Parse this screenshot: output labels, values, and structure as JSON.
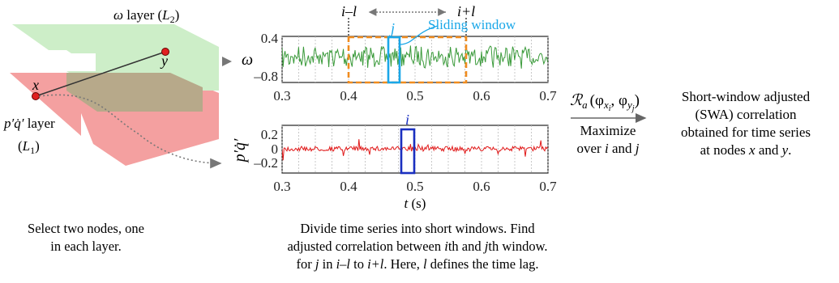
{
  "layers": {
    "top_label_main": "ω layer (",
    "top_label_sub": "L",
    "top_label_idx": "2",
    "top_label_close": ")",
    "bottom_label_line1": "p′q̇′ layer",
    "bottom_label_line2_main": "(L",
    "bottom_label_line2_idx": "1",
    "bottom_label_line2_close": ")",
    "colors": {
      "top": "#cdeec8",
      "bottom": "#f4a0a0",
      "overlap": "#b7a98a"
    }
  },
  "nodes": {
    "x_label": "x",
    "y_label": "y",
    "color": "#e02020"
  },
  "window_markers": {
    "left": "i–l",
    "right": "i+l"
  },
  "sliding_window_label": "Sliding window",
  "top_series": {
    "ylabel": "ω",
    "yticks": [
      "0.4",
      "–0.8"
    ],
    "xticks": [
      "0.3",
      "0.4",
      "0.5",
      "0.6",
      "0.7"
    ],
    "line_color": "#3a9a3a",
    "window_label": "j",
    "window_color": "#1aa7e8",
    "lag_box_color": "#f08c1e"
  },
  "bottom_series": {
    "ylabel": "p′q̇′",
    "yticks": [
      "0.2",
      "0",
      "–0.2"
    ],
    "xticks": [
      "0.3",
      "0.4",
      "0.5",
      "0.6",
      "0.7"
    ],
    "xlabel_var": "t",
    "xlabel_unit": " (s)",
    "line_color": "#e01818",
    "window_label": "i",
    "window_color": "#1a2fc0"
  },
  "arrow_labels": {
    "formula_R": "ℛ",
    "formula_sub": "a",
    "formula_args": "(φ",
    "formula_x": "x",
    "formula_i": "i",
    "formula_comma": ", φ",
    "formula_y": "y",
    "formula_j": "j",
    "formula_close": ")",
    "maximize_line1": "Maximize",
    "maximize_line2_prefix": "over ",
    "maximize_i": "i",
    "maximize_and": " and ",
    "maximize_j": "j"
  },
  "result_text": {
    "line1": "Short-window adjusted",
    "line2": "(SWA) correlation",
    "line3": "obtained for time series",
    "line4_prefix": "at nodes ",
    "line4_x": "x",
    "line4_and": " and ",
    "line4_y": "y",
    "line4_end": "."
  },
  "captions": {
    "left_line1": "Select two nodes, one",
    "left_line2": "in each layer.",
    "mid_line1": "Divide time series into short windows. Find",
    "mid_line2_a": "adjusted correlation between ",
    "mid_line2_i": "i",
    "mid_line2_b": "th and ",
    "mid_line2_j": "j",
    "mid_line2_c": "th window.",
    "mid_line3_a": "for ",
    "mid_line3_j": "j",
    "mid_line3_b": " in ",
    "mid_line3_il": "i–l",
    "mid_line3_c": " to ",
    "mid_line3_ipl": "i+l",
    "mid_line3_d": ". Here, ",
    "mid_line3_l": "l",
    "mid_line3_e": " defines the time lag."
  }
}
